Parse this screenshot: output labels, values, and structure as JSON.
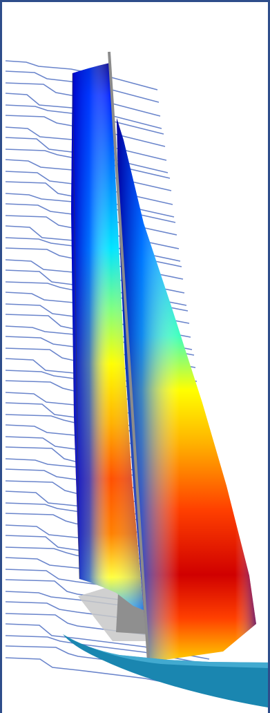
{
  "image": {
    "subject": "sail",
    "colors": {
      "frame": "#2e4d8a",
      "streamline": "#4f6fc2",
      "hull": "#1a86b0",
      "mast": "#8c8c8c",
      "deck": "#b9b9b9"
    },
    "colormap": [
      "#00008b",
      "#0000ff",
      "#0080ff",
      "#00e5ff",
      "#40ffbf",
      "#bfff40",
      "#ffff00",
      "#ffb000",
      "#ff4000",
      "#b40000"
    ]
  }
}
